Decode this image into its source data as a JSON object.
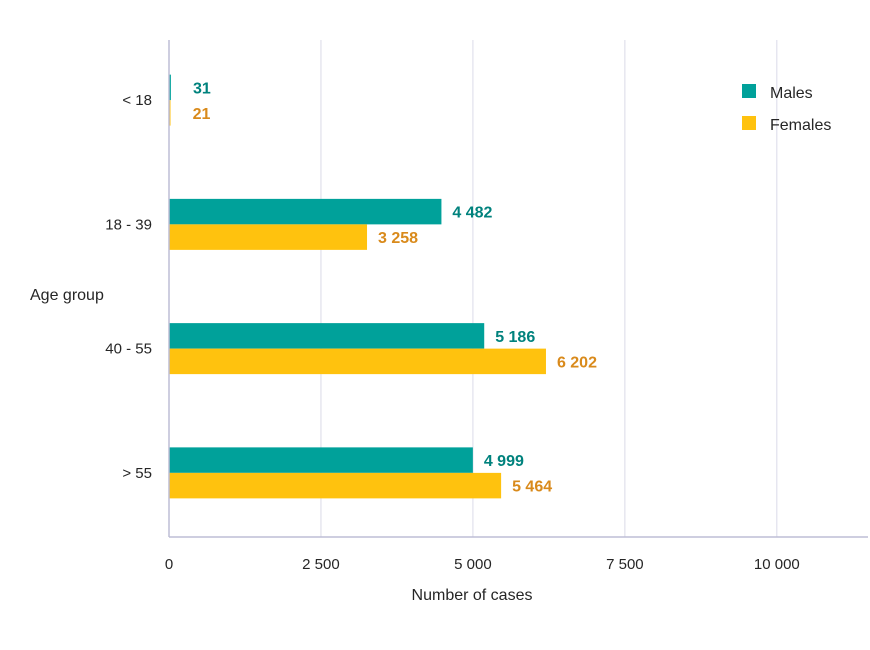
{
  "chart_data": {
    "type": "bar",
    "orientation": "horizontal",
    "categories": [
      "< 18",
      "18 - 39",
      "40 - 55",
      "> 55"
    ],
    "series": [
      {
        "name": "Males",
        "values": [
          31,
          4482,
          5186,
          4999
        ],
        "labels": [
          "31",
          "4 482",
          "5 186",
          "4 999"
        ],
        "color": "#00A19A",
        "label_color": "#00827D"
      },
      {
        "name": "Females",
        "values": [
          21,
          3258,
          6202,
          5464
        ],
        "labels": [
          "21",
          "3 258",
          "6 202",
          "5 464"
        ],
        "color": "#FFC20E",
        "label_color": "#D98A1B"
      }
    ],
    "xlabel": "Number of cases",
    "ylabel": "Age group",
    "xlim": [
      0,
      11500
    ],
    "xticks": [
      0,
      2500,
      5000,
      7500,
      10000
    ],
    "xtick_labels": [
      "0",
      "2 500",
      "5 000",
      "7 500",
      "10 000"
    ],
    "grid": "vertical",
    "legend_position": "top-right",
    "colors": {
      "grid": "#DADAE8",
      "axis": "#BDBDD6"
    }
  }
}
